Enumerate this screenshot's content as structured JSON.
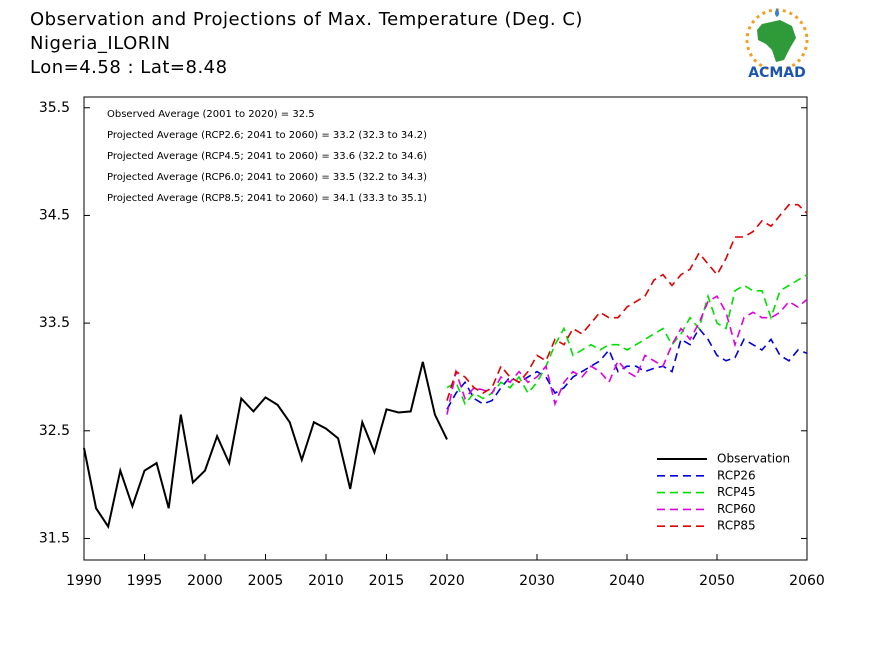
{
  "chart_data": {
    "type": "line",
    "title": "Observation and Projections of Max. Temperature (Deg. C)",
    "subtitle": "Nigeria_ILORIN",
    "location": "Lon=4.58 : Lat=8.48",
    "logo_text": "ACMAD",
    "annotations": [
      "Observed Average (2001 to 2020) = 32.5",
      "Projected Average (RCP2.6; 2041 to 2060) = 33.2 (32.3 to 34.2)",
      "Projected Average (RCP4.5; 2041 to 2060) = 33.6 (32.2 to 34.6)",
      "Projected Average (RCP6.0; 2041 to 2060) = 33.5 (32.2 to 34.3)",
      "Projected Average (RCP8.5; 2041 to 2060) = 34.1 (33.3 to 35.1)"
    ],
    "xlim": [
      1990,
      2060
    ],
    "x_break": 2020,
    "xticks": [
      1990,
      1995,
      2000,
      2005,
      2010,
      2015,
      2020,
      2030,
      2040,
      2050,
      2060
    ],
    "ylim": [
      31.3,
      35.6
    ],
    "yticks": [
      31.5,
      32.5,
      33.5,
      34.5,
      35.5
    ],
    "legend_position": "lower right",
    "series": [
      {
        "name": "Observation",
        "color": "#000000",
        "dashed": false,
        "x": [
          1990,
          1991,
          1992,
          1993,
          1994,
          1995,
          1996,
          1997,
          1998,
          1999,
          2000,
          2001,
          2002,
          2003,
          2004,
          2005,
          2006,
          2007,
          2008,
          2009,
          2010,
          2011,
          2012,
          2013,
          2014,
          2015,
          2016,
          2017,
          2018,
          2019,
          2020
        ],
        "values": [
          32.34,
          31.78,
          31.61,
          32.13,
          31.8,
          32.13,
          32.2,
          31.78,
          32.65,
          32.02,
          32.13,
          32.45,
          32.2,
          32.8,
          32.68,
          32.81,
          32.74,
          32.58,
          32.23,
          32.58,
          32.52,
          32.43,
          31.96,
          32.58,
          32.3,
          32.7,
          32.67,
          32.68,
          33.14,
          32.65,
          32.42
        ]
      },
      {
        "name": "RCP26",
        "color": "#0000e0",
        "dashed": true,
        "x": [
          2020,
          2021,
          2022,
          2023,
          2024,
          2025,
          2026,
          2027,
          2028,
          2029,
          2030,
          2031,
          2032,
          2033,
          2034,
          2035,
          2036,
          2037,
          2038,
          2039,
          2040,
          2041,
          2042,
          2043,
          2044,
          2045,
          2046,
          2047,
          2048,
          2049,
          2050,
          2051,
          2052,
          2053,
          2054,
          2055,
          2056,
          2057,
          2058,
          2059,
          2060
        ],
        "values": [
          32.7,
          32.85,
          32.95,
          32.8,
          32.75,
          32.78,
          32.9,
          33.0,
          32.95,
          33.0,
          33.05,
          33.0,
          32.85,
          32.9,
          33.0,
          33.05,
          33.1,
          33.15,
          33.25,
          33.05,
          33.1,
          33.1,
          33.05,
          33.08,
          33.1,
          33.05,
          33.35,
          33.3,
          33.45,
          33.35,
          33.2,
          33.15,
          33.18,
          33.35,
          33.3,
          33.25,
          33.35,
          33.2,
          33.15,
          33.25,
          33.22
        ]
      },
      {
        "name": "RCP45",
        "color": "#00e000",
        "dashed": true,
        "x": [
          2020,
          2021,
          2022,
          2023,
          2024,
          2025,
          2026,
          2027,
          2028,
          2029,
          2030,
          2031,
          2032,
          2033,
          2034,
          2035,
          2036,
          2037,
          2038,
          2039,
          2040,
          2041,
          2042,
          2043,
          2044,
          2045,
          2046,
          2047,
          2048,
          2049,
          2050,
          2051,
          2052,
          2053,
          2054,
          2055,
          2056,
          2057,
          2058,
          2059,
          2060
        ],
        "values": [
          32.9,
          32.95,
          32.75,
          32.85,
          32.8,
          32.85,
          32.95,
          32.9,
          33.0,
          32.85,
          32.95,
          33.1,
          33.3,
          33.45,
          33.2,
          33.25,
          33.3,
          33.25,
          33.3,
          33.3,
          33.25,
          33.3,
          33.35,
          33.4,
          33.45,
          33.3,
          33.4,
          33.55,
          33.45,
          33.75,
          33.5,
          33.45,
          33.8,
          33.85,
          33.8,
          33.8,
          33.55,
          33.8,
          33.85,
          33.9,
          33.95
        ]
      },
      {
        "name": "RCP60",
        "color": "#e000e0",
        "dashed": true,
        "x": [
          2020,
          2021,
          2022,
          2023,
          2024,
          2025,
          2026,
          2027,
          2028,
          2029,
          2030,
          2031,
          2032,
          2033,
          2034,
          2035,
          2036,
          2037,
          2038,
          2039,
          2040,
          2041,
          2042,
          2043,
          2044,
          2045,
          2046,
          2047,
          2048,
          2049,
          2050,
          2051,
          2052,
          2053,
          2054,
          2055,
          2056,
          2057,
          2058,
          2059,
          2060
        ],
        "values": [
          32.65,
          33.05,
          32.8,
          32.9,
          32.88,
          32.85,
          33.0,
          32.95,
          33.05,
          32.95,
          33.0,
          33.1,
          32.75,
          32.95,
          33.05,
          33.0,
          33.1,
          33.05,
          32.95,
          33.15,
          33.05,
          33.0,
          33.2,
          33.15,
          33.1,
          33.3,
          33.45,
          33.35,
          33.5,
          33.7,
          33.75,
          33.6,
          33.3,
          33.55,
          33.6,
          33.55,
          33.55,
          33.6,
          33.7,
          33.65,
          33.72
        ]
      },
      {
        "name": "RCP85",
        "color": "#e00000",
        "dashed": true,
        "x": [
          2020,
          2021,
          2022,
          2023,
          2024,
          2025,
          2026,
          2027,
          2028,
          2029,
          2030,
          2031,
          2032,
          2033,
          2034,
          2035,
          2036,
          2037,
          2038,
          2039,
          2040,
          2041,
          2042,
          2043,
          2044,
          2045,
          2046,
          2047,
          2048,
          2049,
          2050,
          2051,
          2052,
          2053,
          2054,
          2055,
          2056,
          2057,
          2058,
          2059,
          2060
        ],
        "values": [
          32.78,
          33.05,
          33.0,
          32.9,
          32.85,
          32.9,
          33.1,
          33.0,
          32.95,
          33.05,
          33.2,
          33.15,
          33.35,
          33.3,
          33.45,
          33.4,
          33.5,
          33.6,
          33.55,
          33.55,
          33.65,
          33.7,
          33.75,
          33.9,
          33.95,
          33.85,
          33.95,
          34.0,
          34.15,
          34.05,
          33.95,
          34.1,
          34.3,
          34.3,
          34.35,
          34.45,
          34.4,
          34.5,
          34.6,
          34.6,
          34.52
        ]
      }
    ]
  }
}
